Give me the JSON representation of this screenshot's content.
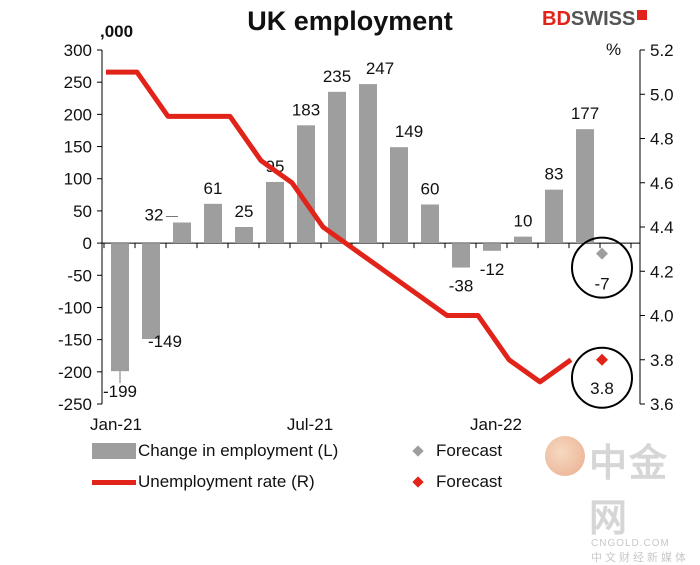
{
  "header": {
    "title": "UK employment",
    "logo_text_bd": "BD",
    "logo_text_swiss": "SWISS"
  },
  "chart_data": {
    "type": "bar",
    "title": "UK employment",
    "left_unit": ",000",
    "right_unit": "%",
    "x_tick_labels": [
      "Jan-21",
      "Jul-21",
      "Jan-22"
    ],
    "x_tick_indices": [
      0,
      6,
      12
    ],
    "y_left": {
      "min": -250,
      "max": 300,
      "ticks": [
        300,
        250,
        200,
        150,
        100,
        50,
        0,
        -50,
        -100,
        -150,
        -200,
        -250
      ]
    },
    "y_right": {
      "min": 3.6,
      "max": 5.2,
      "ticks": [
        "5.2",
        "5.0",
        "4.8",
        "4.6",
        "4.4",
        "4.2",
        "4.0",
        "3.8",
        "3.6"
      ]
    },
    "series": [
      {
        "name": "Change in employment (L)",
        "type": "bar",
        "color": "#9e9e9e",
        "values": [
          -199,
          -149,
          32,
          61,
          25,
          95,
          183,
          235,
          247,
          149,
          60,
          -38,
          -12,
          10,
          83,
          177
        ],
        "labels": [
          "-199",
          "-149",
          "32",
          "61",
          "25",
          "95",
          "183",
          "235",
          "247",
          "149",
          "60",
          "-38",
          "-12",
          "10",
          "83",
          "177"
        ]
      },
      {
        "name": "Unemployment rate (R)",
        "type": "line",
        "color": "#e2231a",
        "values": [
          5.1,
          5.1,
          4.9,
          4.9,
          4.9,
          4.7,
          4.6,
          4.4,
          4.3,
          4.2,
          4.1,
          4.0,
          4.0,
          3.8,
          3.7,
          3.8
        ]
      }
    ],
    "forecasts": [
      {
        "name": "Forecast",
        "axis": "left",
        "index": 16,
        "value": -7,
        "label": "-7",
        "color": "#9e9e9e"
      },
      {
        "name": "Forecast",
        "axis": "right",
        "index": 16,
        "value": 3.8,
        "label": "3.8",
        "color": "#e2231a"
      }
    ]
  },
  "legend": {
    "bar_label": "Change in employment (L)",
    "line_label": "Unemployment rate (R)",
    "forecast_grey_label": "Forecast",
    "forecast_red_label": "Forecast"
  },
  "watermark": {
    "main": "中金网",
    "sub": "CNGOLD.COM",
    "zh": "中文财经新媒体"
  }
}
